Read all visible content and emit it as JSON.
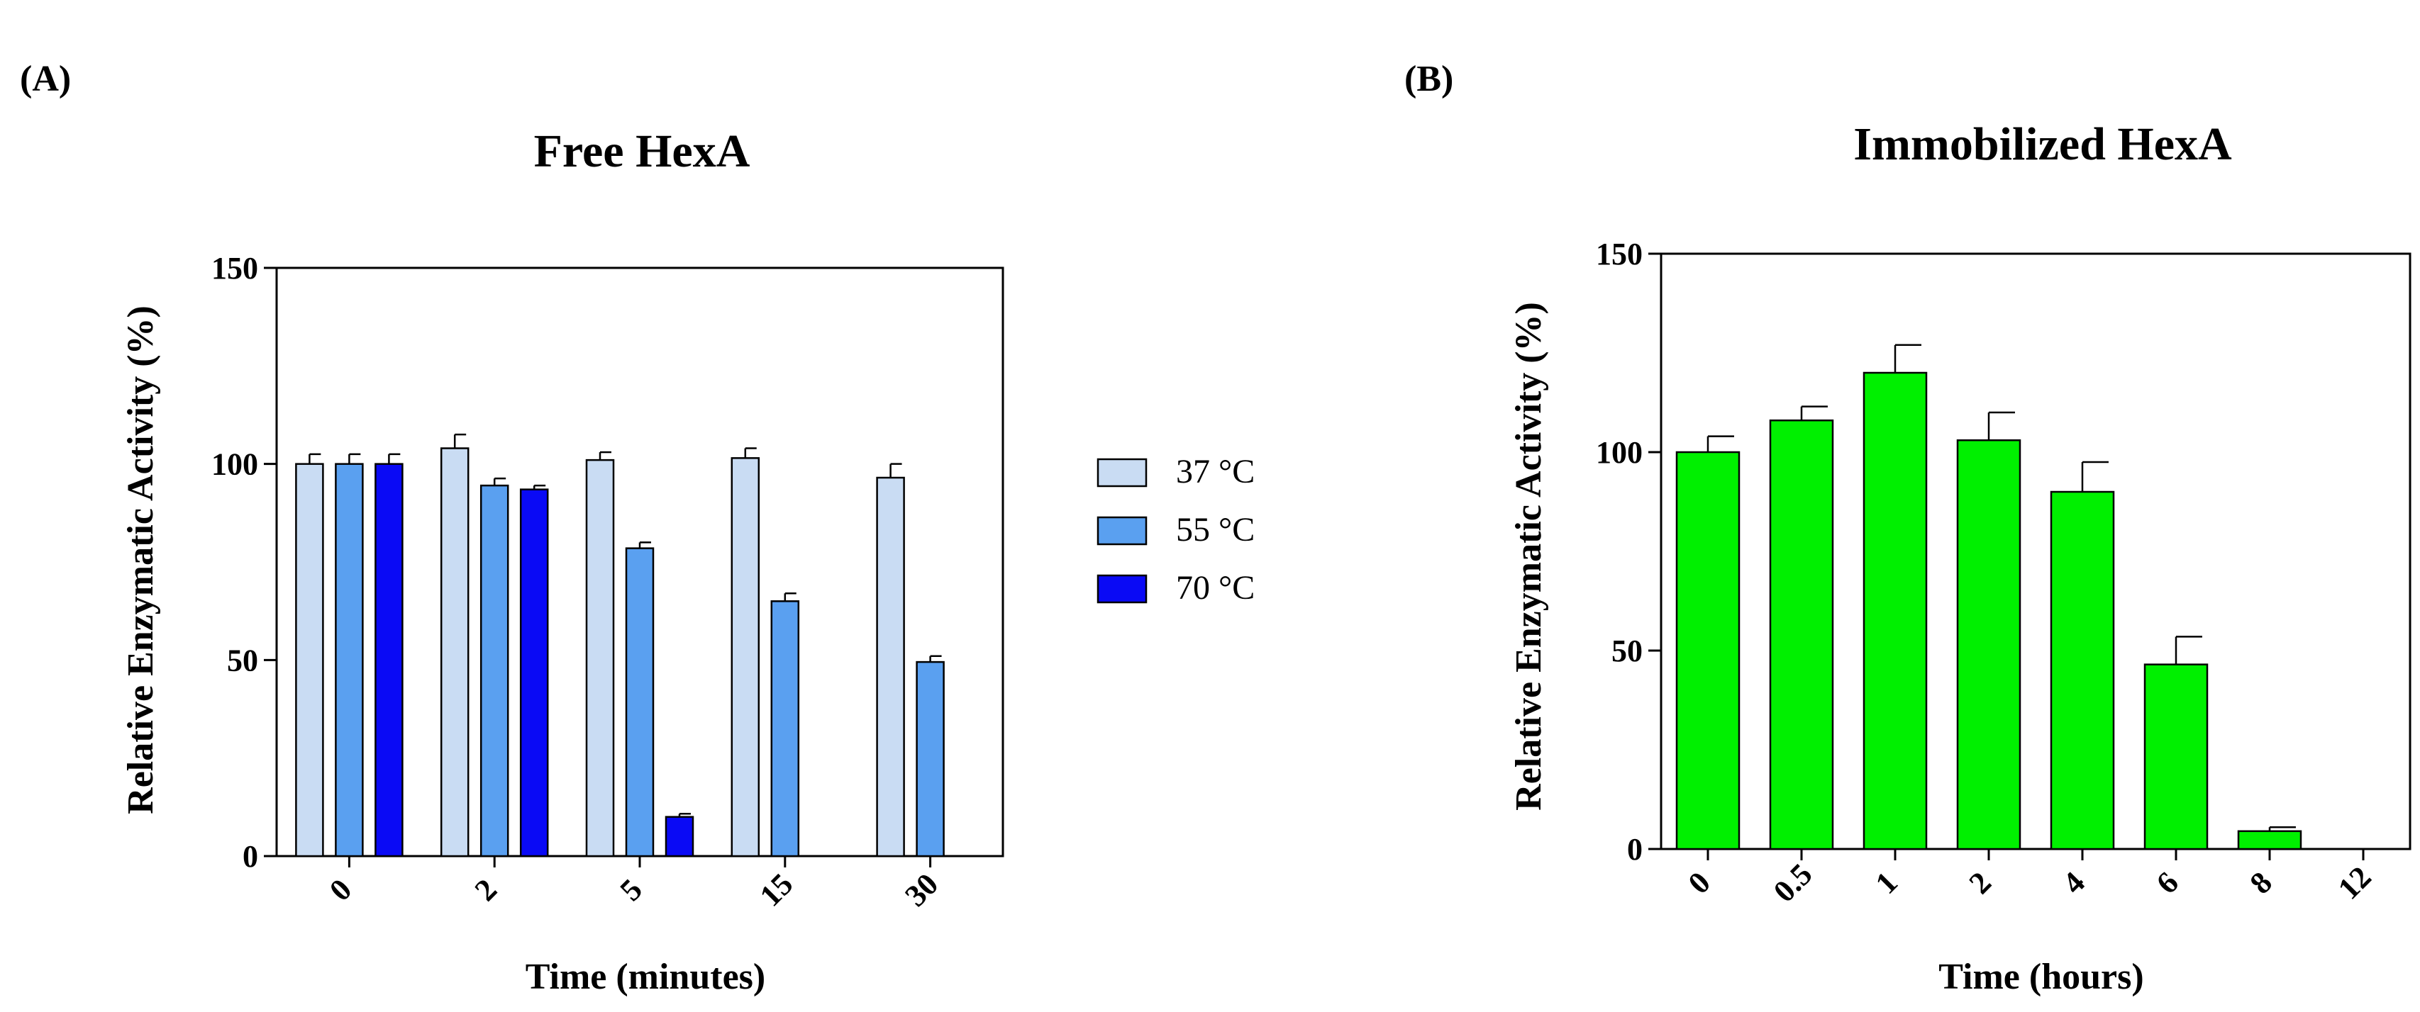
{
  "panels": {
    "a_label": "(A)",
    "b_label": "(B)"
  },
  "chart_data": [
    {
      "type": "bar",
      "title": "Free HexA",
      "xlabel": "Time (minutes)",
      "ylabel": "Relative Enzymatic Activity (%)",
      "ylim": [
        0,
        150
      ],
      "yticks": [
        0,
        50,
        100,
        150
      ],
      "categories": [
        "0",
        "2",
        "5",
        "15",
        "30"
      ],
      "series": [
        {
          "name": "37 °C",
          "color": "#c9dcf3",
          "values": [
            100,
            104,
            101,
            101.5,
            96.5
          ],
          "errors": [
            2.5,
            3.5,
            2,
            2.5,
            3.5
          ]
        },
        {
          "name": "55 °C",
          "color": "#5aa0f0",
          "values": [
            100,
            94.5,
            78.5,
            65,
            49.5
          ],
          "errors": [
            2.5,
            1.8,
            1.5,
            2,
            1.5
          ]
        },
        {
          "name": "70 °C",
          "color": "#0a0af5",
          "values": [
            100,
            93.5,
            10,
            null,
            null
          ],
          "errors": [
            2.5,
            1,
            0.8,
            null,
            null
          ]
        }
      ],
      "legend_position": "right"
    },
    {
      "type": "bar",
      "title": "Immobilized HexA",
      "xlabel": "Time (hours)",
      "ylabel": "Relative Enzymatic Activity (%)",
      "ylim": [
        0,
        150
      ],
      "yticks": [
        0,
        50,
        100,
        150
      ],
      "categories": [
        "0",
        "0.5",
        "1",
        "2",
        "4",
        "6",
        "8",
        "12"
      ],
      "series": [
        {
          "name": "Immobilized HexA",
          "color": "#00f000",
          "values": [
            100,
            108,
            120,
            103,
            90,
            46.5,
            4.5,
            0
          ],
          "errors": [
            4,
            3.5,
            7,
            7,
            7.5,
            7,
            1,
            0
          ]
        }
      ]
    }
  ]
}
